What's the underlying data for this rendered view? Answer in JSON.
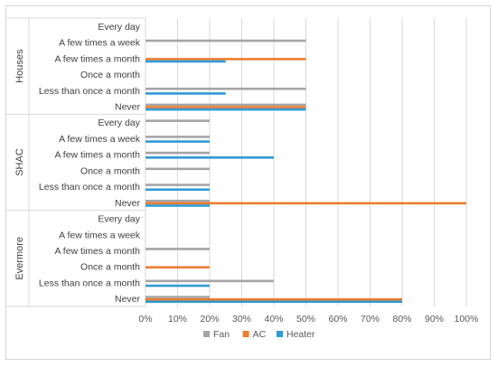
{
  "chart_data": {
    "type": "bar",
    "orientation": "horizontal",
    "title": "",
    "xlabel": "",
    "ylabel": "",
    "xlim": [
      0,
      100
    ],
    "x_ticks": [
      "0%",
      "10%",
      "20%",
      "30%",
      "40%",
      "50%",
      "60%",
      "70%",
      "80%",
      "90%",
      "100%"
    ],
    "grid": "vertical",
    "legend_position": "bottom",
    "categories": [
      "Every day",
      "A few times a week",
      "A few times a month",
      "Once a month",
      "Less than once a month",
      "Never"
    ],
    "groups": [
      {
        "name": "Houses",
        "series": [
          {
            "name": "Fan",
            "values": [
              0,
              50,
              0,
              0,
              50,
              50
            ]
          },
          {
            "name": "AC",
            "values": [
              0,
              0,
              50,
              0,
              0,
              50
            ]
          },
          {
            "name": "Heater",
            "values": [
              0,
              0,
              25,
              0,
              25,
              50
            ]
          }
        ]
      },
      {
        "name": "SHAC",
        "series": [
          {
            "name": "Fan",
            "values": [
              20,
              20,
              20,
              20,
              20,
              20
            ]
          },
          {
            "name": "AC",
            "values": [
              0,
              0,
              0,
              0,
              0,
              100
            ]
          },
          {
            "name": "Heater",
            "values": [
              0,
              20,
              40,
              0,
              20,
              20
            ]
          }
        ]
      },
      {
        "name": "Evermore",
        "series": [
          {
            "name": "Fan",
            "values": [
              0,
              0,
              20,
              0,
              40,
              20
            ]
          },
          {
            "name": "AC",
            "values": [
              0,
              0,
              0,
              20,
              0,
              80
            ]
          },
          {
            "name": "Heater",
            "values": [
              0,
              0,
              0,
              0,
              20,
              80
            ]
          }
        ]
      }
    ],
    "legend": [
      {
        "name": "Fan",
        "color": "#a5a5a5"
      },
      {
        "name": "AC",
        "color": "#ed7d31"
      },
      {
        "name": "Heater",
        "color": "#2e9bd6"
      }
    ]
  }
}
